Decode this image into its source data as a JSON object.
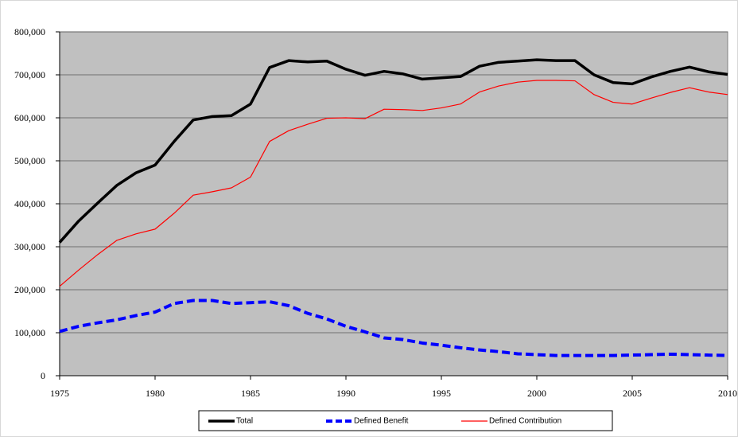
{
  "chart_data": {
    "type": "line",
    "x": [
      1975,
      1976,
      1977,
      1978,
      1979,
      1980,
      1981,
      1982,
      1983,
      1984,
      1985,
      1986,
      1987,
      1988,
      1989,
      1990,
      1991,
      1992,
      1993,
      1994,
      1995,
      1996,
      1997,
      1998,
      1999,
      2000,
      2001,
      2002,
      2003,
      2004,
      2005,
      2006,
      2007,
      2008,
      2009,
      2010
    ],
    "series": [
      {
        "name": "Total",
        "color": "#000000",
        "width": 3.5,
        "dashed": false,
        "values": [
          310000,
          360000,
          402000,
          443000,
          472000,
          490000,
          545000,
          595000,
          603000,
          605000,
          632000,
          717000,
          733000,
          730000,
          732000,
          713000,
          699000,
          708000,
          702000,
          690000,
          693000,
          696000,
          720000,
          729000,
          732000,
          735000,
          733000,
          733000,
          700000,
          682000,
          679000,
          695000,
          708000,
          718000,
          707000,
          701000
        ]
      },
      {
        "name": "Defined Benefit",
        "color": "#0000ff",
        "width": 4,
        "dashed": true,
        "values": [
          103000,
          115000,
          123000,
          130000,
          140000,
          148000,
          168000,
          175000,
          175000,
          168000,
          170000,
          172000,
          163000,
          145000,
          132000,
          115000,
          102000,
          88000,
          84000,
          76000,
          71000,
          65000,
          60000,
          56000,
          51000,
          49000,
          47000,
          47000,
          47000,
          47000,
          48000,
          49000,
          50000,
          49000,
          48000,
          47000
        ]
      },
      {
        "name": "Defined Contribution",
        "color": "#ff0000",
        "width": 1.2,
        "dashed": false,
        "values": [
          208000,
          246000,
          282000,
          315000,
          330000,
          341000,
          378000,
          420000,
          428000,
          437000,
          462000,
          545000,
          570000,
          585000,
          599000,
          600000,
          598000,
          620000,
          619000,
          617000,
          623000,
          632000,
          660000,
          674000,
          683000,
          687000,
          687000,
          686000,
          654000,
          636000,
          632000,
          646000,
          659000,
          670000,
          660000,
          654000
        ]
      }
    ],
    "xlim": [
      1975,
      2010
    ],
    "xticks": [
      1975,
      1980,
      1985,
      1990,
      1995,
      2000,
      2005,
      2010
    ],
    "ylim": [
      0,
      800000
    ],
    "yticks": [
      0,
      {
        "value": 100000,
        "label": "100,000"
      },
      {
        "value": 200000,
        "label": "200,000"
      },
      {
        "value": 300000,
        "label": "300,000"
      },
      {
        "value": 400000,
        "label": "400,000"
      },
      {
        "value": 500000,
        "label": "500,000"
      },
      {
        "value": 600000,
        "label": "600,000"
      },
      {
        "value": 700000,
        "label": "700,000"
      },
      {
        "value": 800000,
        "label": "800,000"
      }
    ],
    "grid": true,
    "plot_background": "#c0c0c0",
    "legend": "bottom"
  }
}
